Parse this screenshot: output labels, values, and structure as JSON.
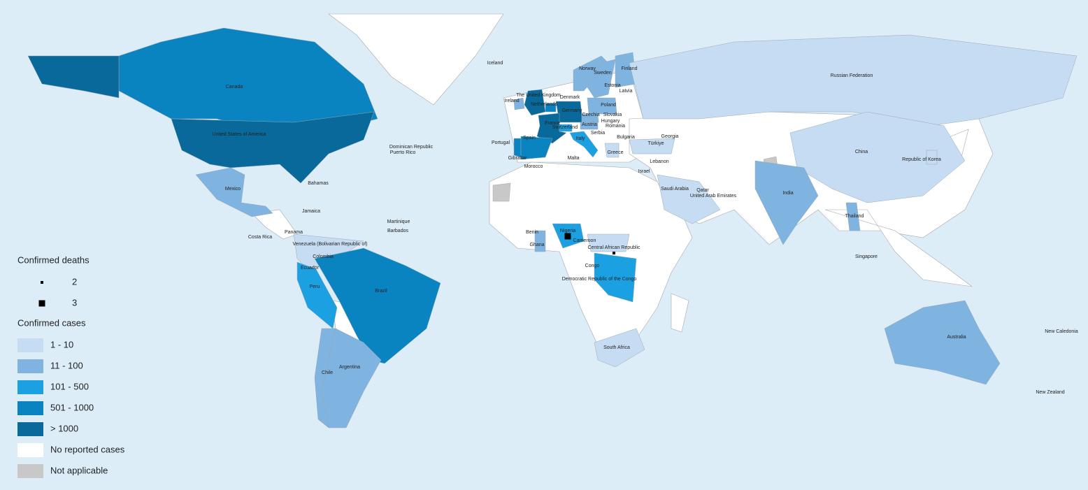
{
  "map": {
    "deaths_legend": {
      "title": "Confirmed deaths",
      "values": [
        2,
        3
      ]
    },
    "cases_legend": {
      "title": "Confirmed cases",
      "items": [
        {
          "label": "1 - 10",
          "color": "#c6dcf2"
        },
        {
          "label": "11 - 100",
          "color": "#7fb3e0"
        },
        {
          "label": "101 - 500",
          "color": "#1ba1e2"
        },
        {
          "label": "501 - 1000",
          "color": "#0a84c0"
        },
        {
          "label": "> 1000",
          "color": "#08699a"
        },
        {
          "label": "No reported cases",
          "color": "#ffffff"
        },
        {
          "label": "Not applicable",
          "color": "#c8c8c8"
        }
      ]
    },
    "countries": [
      {
        "name": "Canada",
        "class": 3
      },
      {
        "name": "United States of America",
        "class": 4
      },
      {
        "name": "Mexico",
        "class": 1
      },
      {
        "name": "Bahamas",
        "class": 0
      },
      {
        "name": "Jamaica",
        "class": 0
      },
      {
        "name": "Panama",
        "class": 0
      },
      {
        "name": "Costa Rica",
        "class": 0
      },
      {
        "name": "Venezuela (Bolivarian Republic of)",
        "class": 0
      },
      {
        "name": "Colombia",
        "class": 0
      },
      {
        "name": "Ecuador",
        "class": 0
      },
      {
        "name": "Peru",
        "class": 2
      },
      {
        "name": "Brazil",
        "class": 3
      },
      {
        "name": "Argentina",
        "class": 1
      },
      {
        "name": "Chile",
        "class": 1
      },
      {
        "name": "Dominican Republic",
        "class": 0
      },
      {
        "name": "Puerto Rico",
        "class": 0
      },
      {
        "name": "Martinique",
        "class": 0
      },
      {
        "name": "Barbados",
        "class": 0
      },
      {
        "name": "Iceland",
        "class": 0
      },
      {
        "name": "Norway",
        "class": 1
      },
      {
        "name": "Sweden",
        "class": 1
      },
      {
        "name": "Finland",
        "class": 1
      },
      {
        "name": "Estonia",
        "class": 0
      },
      {
        "name": "Latvia",
        "class": 0
      },
      {
        "name": "The United Kingdom",
        "class": 4
      },
      {
        "name": "Ireland",
        "class": 1
      },
      {
        "name": "Netherlands",
        "class": 3
      },
      {
        "name": "Denmark",
        "class": 1
      },
      {
        "name": "Germany",
        "class": 4
      },
      {
        "name": "Poland",
        "class": 1
      },
      {
        "name": "Czechia",
        "class": 1
      },
      {
        "name": "Slovakia",
        "class": 0
      },
      {
        "name": "Hungary",
        "class": 0
      },
      {
        "name": "France",
        "class": 4
      },
      {
        "name": "Switzerland",
        "class": 2
      },
      {
        "name": "Austria",
        "class": 1
      },
      {
        "name": "Romania",
        "class": 0
      },
      {
        "name": "Bulgaria",
        "class": 0
      },
      {
        "name": "Portugal",
        "class": 3
      },
      {
        "name": "Spain",
        "class": 3
      },
      {
        "name": "Gibraltar",
        "class": 0
      },
      {
        "name": "Italy",
        "class": 2
      },
      {
        "name": "Malta",
        "class": 0
      },
      {
        "name": "Greece",
        "class": 0
      },
      {
        "name": "Serbia",
        "class": 0
      },
      {
        "name": "Türkiye",
        "class": 0
      },
      {
        "name": "Georgia",
        "class": 0
      },
      {
        "name": "Morocco",
        "class": 0
      },
      {
        "name": "Lebanon",
        "class": 0
      },
      {
        "name": "Israel",
        "class": 0
      },
      {
        "name": "Saudi Arabia",
        "class": 0
      },
      {
        "name": "Qatar",
        "class": 0
      },
      {
        "name": "United Arab Emirates",
        "class": 0
      },
      {
        "name": "Russian Federation",
        "class": 0
      },
      {
        "name": "China",
        "class": 0
      },
      {
        "name": "Republic of Korea",
        "class": 0
      },
      {
        "name": "India",
        "class": 1
      },
      {
        "name": "Thailand",
        "class": 1
      },
      {
        "name": "Singapore",
        "class": 0
      },
      {
        "name": "Benin",
        "class": 0
      },
      {
        "name": "Ghana",
        "class": 1
      },
      {
        "name": "Nigeria",
        "class": 2
      },
      {
        "name": "Cameroon",
        "class": 0
      },
      {
        "name": "Central African Republic",
        "class": 0
      },
      {
        "name": "Congo",
        "class": 0
      },
      {
        "name": "Democratic Republic of the Congo",
        "class": 2
      },
      {
        "name": "South Africa",
        "class": 0
      },
      {
        "name": "Australia",
        "class": 1
      },
      {
        "name": "New Caledonia",
        "class": 0
      },
      {
        "name": "New Zealand",
        "class": 0
      }
    ],
    "deaths": [
      {
        "country": 61,
        "deaths": 3
      },
      {
        "country": 63,
        "deaths": 2
      }
    ]
  }
}
